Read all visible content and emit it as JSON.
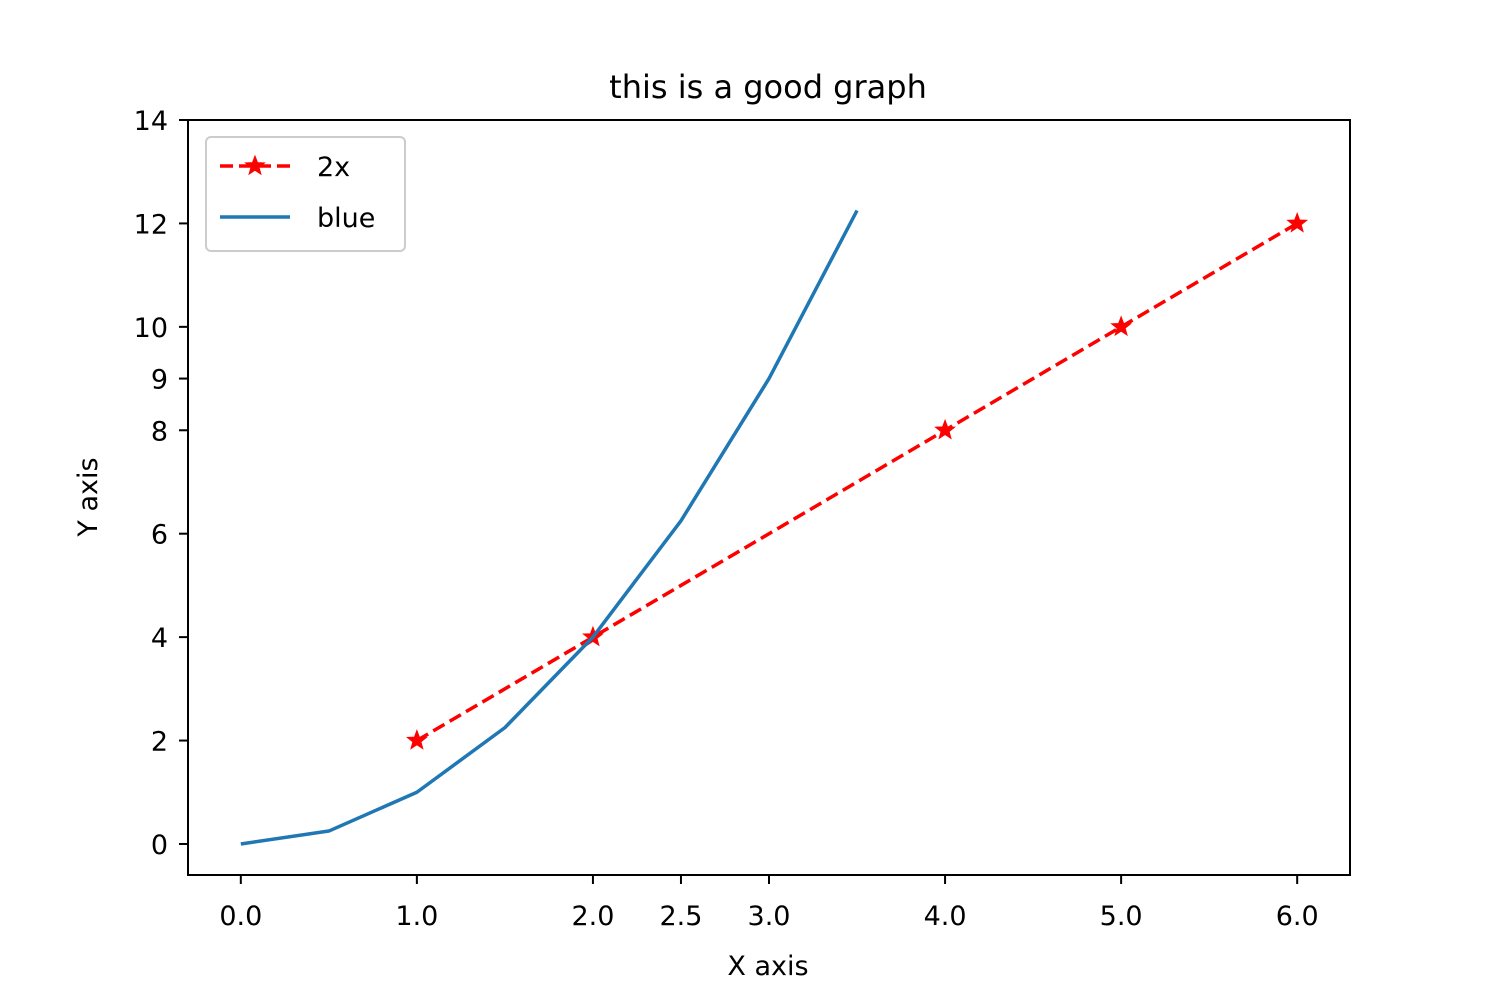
{
  "chart_data": {
    "type": "line",
    "title": "this is a good graph",
    "xlabel": "X axis",
    "ylabel": "Y axis",
    "xlim": [
      -0.3,
      6.3
    ],
    "ylim": [
      -0.6,
      14
    ],
    "xticks": [
      0.0,
      1.0,
      2.0,
      2.5,
      3.0,
      4.0,
      5.0,
      6.0
    ],
    "xtick_labels": [
      "0.0",
      "1.0",
      "2.0",
      "2.5",
      "3.0",
      "4.0",
      "5.0",
      "6.0"
    ],
    "yticks": [
      0,
      2,
      4,
      6,
      8,
      9,
      10,
      12,
      14
    ],
    "ytick_labels": [
      "0",
      "2",
      "4",
      "6",
      "8",
      "9",
      "10",
      "12",
      "14"
    ],
    "grid": false,
    "legend_position": "upper-left",
    "series": [
      {
        "name": "2x",
        "style": "dashed",
        "marker": "star",
        "color": "#ff0000",
        "x": [
          1,
          2,
          3,
          4,
          5,
          6
        ],
        "y": [
          2,
          4,
          6,
          8,
          10,
          12
        ],
        "marker_x": [
          1,
          2,
          4,
          5,
          6
        ],
        "marker_y": [
          2,
          4,
          8,
          10,
          12
        ]
      },
      {
        "name": "blue",
        "style": "solid",
        "marker": "none",
        "color": "#1f77b4",
        "x": [
          0.0,
          0.5,
          1.0,
          1.5,
          2.0,
          2.5,
          3.0,
          3.5
        ],
        "y": [
          0.0,
          0.25,
          1.0,
          2.25,
          4.0,
          6.25,
          9.0,
          12.25
        ]
      }
    ]
  }
}
